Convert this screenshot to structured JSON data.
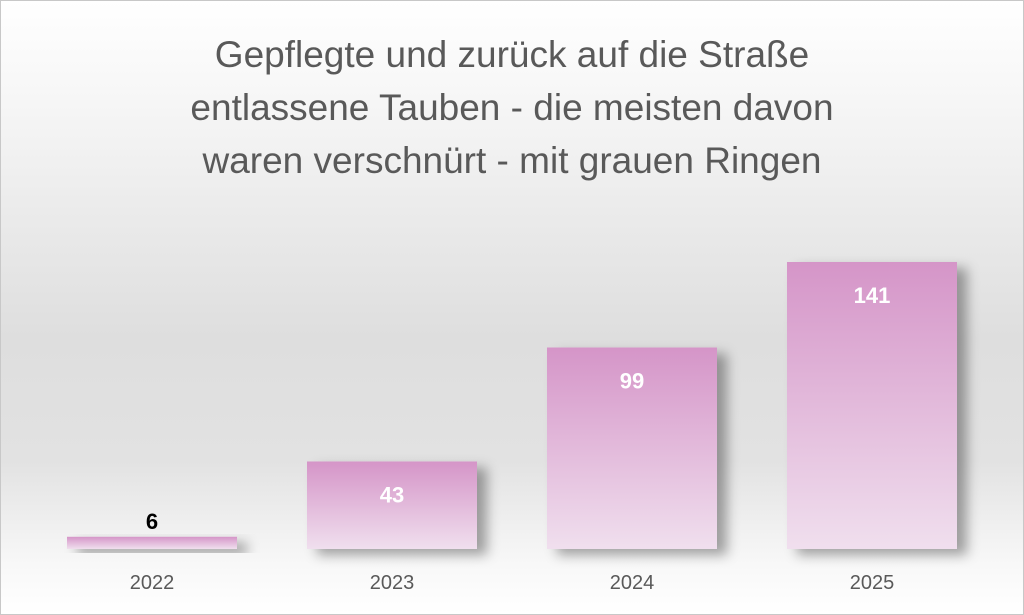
{
  "chart_data": {
    "type": "bar",
    "title_lines": [
      "Gepflegte und zurück auf die Straße",
      "entlassene Tauben - die meisten davon",
      "waren verschnürt - mit grauen Ringen"
    ],
    "categories": [
      "2022",
      "2023",
      "2024",
      "2025"
    ],
    "values": [
      6,
      43,
      99,
      141
    ],
    "ylim": [
      0,
      141
    ],
    "xlabel": "",
    "ylabel": "",
    "grid": false,
    "legend": "none",
    "colors": {
      "bar_top": "#d595c8",
      "bar_bottom": "#f0dfee",
      "label_inside": "#ffffff",
      "label_outside": "#000000",
      "tick": "#595959"
    }
  }
}
